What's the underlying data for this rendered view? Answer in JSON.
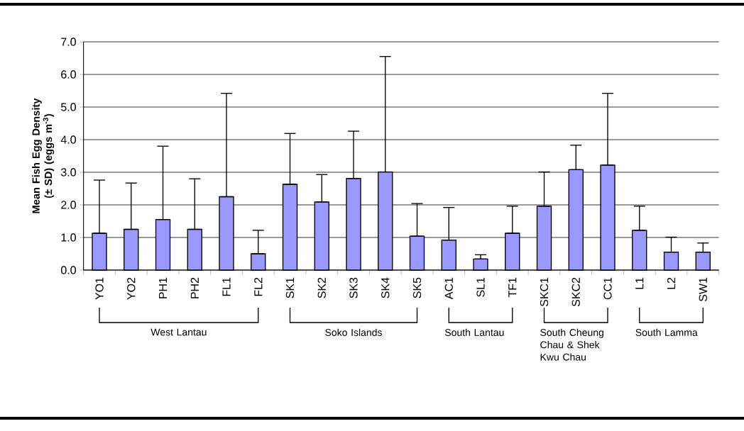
{
  "chart_data": {
    "type": "bar",
    "ylabel": "Mean Fish Egg Density (± SD) (eggs m$^{-3}$)",
    "categories": [
      "YO1",
      "YO2",
      "PH1",
      "PH2",
      "FL1",
      "FL2",
      "SK1",
      "SK2",
      "SK3",
      "SK4",
      "SK5",
      "AC1",
      "SL1",
      "TF1",
      "SKC1",
      "SKC2",
      "CC1",
      "L1",
      "L2",
      "SW1"
    ],
    "values": [
      1.13,
      1.25,
      1.55,
      1.25,
      2.25,
      0.5,
      2.63,
      2.09,
      2.81,
      3.01,
      1.04,
      0.92,
      0.34,
      1.13,
      1.96,
      3.08,
      3.22,
      1.22,
      0.55,
      0.55
    ],
    "errors": [
      [
        1.13,
        2.76
      ],
      [
        1.25,
        2.67
      ],
      [
        1.55,
        3.8
      ],
      [
        1.25,
        2.8
      ],
      [
        2.25,
        5.42
      ],
      [
        0.5,
        1.22
      ],
      [
        2.63,
        4.19
      ],
      [
        2.09,
        2.93
      ],
      [
        2.81,
        4.26
      ],
      [
        3.01,
        6.55
      ],
      [
        1.04,
        2.04
      ],
      [
        0.92,
        1.92
      ],
      [
        0.34,
        0.47
      ],
      [
        1.13,
        1.96
      ],
      [
        1.96,
        3.01
      ],
      [
        3.08,
        3.83
      ],
      [
        3.22,
        5.42
      ],
      [
        1.22,
        1.96
      ],
      [
        0.55,
        1.01
      ],
      [
        0.55,
        0.83
      ]
    ],
    "color": "#9999ff",
    "ylim": [
      0,
      7
    ],
    "yticks": [
      {
        "value": 0,
        "label": "0.0"
      },
      {
        "value": 1,
        "label": "1.0"
      },
      {
        "value": 2,
        "label": "2.0"
      },
      {
        "value": 3,
        "label": "3.0"
      },
      {
        "value": 4,
        "label": "4.0"
      },
      {
        "value": 5,
        "label": "5.0"
      },
      {
        "value": 6,
        "label": "6.0"
      },
      {
        "value": 7,
        "label": "7.0"
      }
    ],
    "grid": "y",
    "annotations": [
      "West Lantau",
      "Soko Islands",
      "South Lantau",
      "South Cheung Chau & Shek Kwu Chau",
      "South Lamma"
    ]
  }
}
